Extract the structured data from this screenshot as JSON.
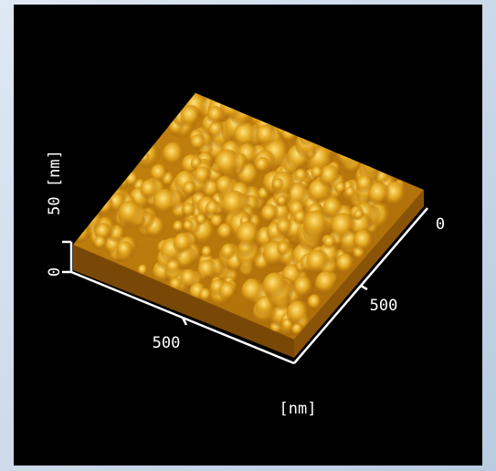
{
  "image": {
    "z_axis": {
      "top_label": "50 [nm]",
      "bottom_label": "0"
    },
    "x_axis": {
      "label": "500"
    },
    "y_axis": {
      "label": "500",
      "end_label": "0"
    },
    "unit_label": "[nm]"
  }
}
